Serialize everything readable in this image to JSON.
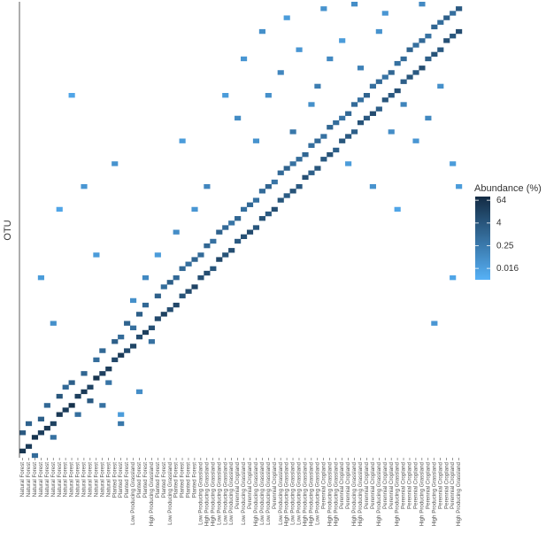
{
  "chart_data": {
    "type": "heatmap",
    "y_label": "OTU",
    "legend_title": "Abundance (%)",
    "log_scale": true,
    "colors": [
      "#56B1F7",
      "#132B43"
    ],
    "color_lim": [
      0.004,
      100
    ],
    "color_ticks": [
      64,
      4,
      0.25,
      0.016
    ],
    "categories": [
      "Natural Forest",
      "Natural Forest",
      "Natural Forest",
      "Natural Forest",
      "Natural Forest",
      "Natural Forest",
      "Natural Forest",
      "Natural Forest",
      "Natural Forest",
      "Natural Forest",
      "Natural Forest",
      "Natural Forest",
      "Natural Forest",
      "Natural Forest",
      "Natural Forest",
      "Planted Forest",
      "Planted Forest",
      "Planted Forest",
      "Low Producing Grassland",
      "Planted Forest",
      "Planted Forest",
      "High Producing Grassland",
      "Planted Forest",
      "Planted Forest",
      "Low Producing Grassland",
      "Planted Forest",
      "Planted Forest",
      "Planted Forest",
      "Planted Forest",
      "Low Producing Grassland",
      "High Producing Grassland",
      "High Producing Grassland",
      "Low Producing Grassland",
      "Low Producing Grassland",
      "Low Producing Grassland",
      "Perennial Cropland",
      "Low Producing Grassland",
      "Perennial Cropland",
      "High Producing Grassland",
      "Low Producing Grassland",
      "Low Producing Grassland",
      "Perennial Cropland",
      "Low Producing Grassland",
      "High Producing Grassland",
      "Low Producing Grassland",
      "Low Producing Grassland",
      "High Producing Grassland",
      "High Producing Grassland",
      "Low Producing Grassland",
      "Perennial Cropland",
      "High Producing Grassland",
      "High Producing Grassland",
      "Perennial Cropland",
      "Perennial Cropland",
      "High Producing Grassland",
      "High Producing Grassland",
      "Perennial Cropland",
      "Perennial Cropland",
      "High Producing Grassland",
      "Perennial Cropland",
      "Perennial Cropland",
      "High Producing Grassland",
      "Perennial Cropland",
      "Perennial Cropland",
      "Perennial Cropland",
      "High Producing Grassland",
      "Perennial Cropland",
      "High Producing Grassland",
      "Perennial Cropland",
      "Perennial Cropland",
      "Perennial Cropland",
      "High Producing Grassland"
    ],
    "cells": [
      [
        0,
        98,
        45
      ],
      [
        1,
        97,
        30
      ],
      [
        2,
        95,
        52
      ],
      [
        3,
        94,
        25
      ],
      [
        4,
        93,
        40
      ],
      [
        5,
        92,
        18
      ],
      [
        6,
        90,
        35
      ],
      [
        7,
        89,
        28
      ],
      [
        8,
        88,
        60
      ],
      [
        9,
        86,
        22
      ],
      [
        10,
        85,
        33
      ],
      [
        11,
        84,
        15
      ],
      [
        12,
        82,
        48
      ],
      [
        13,
        81,
        20
      ],
      [
        14,
        80,
        26
      ],
      [
        15,
        78,
        12
      ],
      [
        16,
        77,
        30
      ],
      [
        17,
        76,
        9
      ],
      [
        18,
        75,
        14
      ],
      [
        19,
        73,
        8
      ],
      [
        20,
        72,
        22
      ],
      [
        21,
        71,
        6
      ],
      [
        22,
        69,
        10
      ],
      [
        23,
        68,
        18
      ],
      [
        24,
        67,
        7
      ],
      [
        25,
        66,
        12
      ],
      [
        26,
        64,
        5
      ],
      [
        27,
        63,
        9
      ],
      [
        28,
        62,
        16
      ],
      [
        29,
        60,
        6
      ],
      [
        30,
        59,
        8
      ],
      [
        31,
        58,
        4
      ],
      [
        32,
        56,
        11
      ],
      [
        33,
        55,
        5
      ],
      [
        34,
        54,
        7
      ],
      [
        35,
        52,
        3
      ],
      [
        36,
        51,
        6
      ],
      [
        37,
        50,
        9
      ],
      [
        38,
        49,
        4
      ],
      [
        39,
        47,
        5
      ],
      [
        40,
        46,
        3
      ],
      [
        41,
        45,
        7
      ],
      [
        42,
        43,
        4
      ],
      [
        43,
        42,
        2.5
      ],
      [
        44,
        41,
        5
      ],
      [
        45,
        40,
        3
      ],
      [
        46,
        38,
        6
      ],
      [
        47,
        37,
        2
      ],
      [
        48,
        36,
        4
      ],
      [
        49,
        34,
        3
      ],
      [
        50,
        33,
        5
      ],
      [
        51,
        32,
        2
      ],
      [
        52,
        30,
        4
      ],
      [
        53,
        29,
        3
      ],
      [
        54,
        28,
        2
      ],
      [
        55,
        26,
        5
      ],
      [
        56,
        25,
        3
      ],
      [
        57,
        24,
        8
      ],
      [
        58,
        23,
        2
      ],
      [
        59,
        21,
        4
      ],
      [
        60,
        20,
        3
      ],
      [
        61,
        19,
        6
      ],
      [
        62,
        17,
        2
      ],
      [
        63,
        16,
        4
      ],
      [
        64,
        15,
        3
      ],
      [
        65,
        14,
        7
      ],
      [
        66,
        12,
        2
      ],
      [
        67,
        11,
        5
      ],
      [
        68,
        10,
        3
      ],
      [
        69,
        8,
        6
      ],
      [
        70,
        7,
        4
      ],
      [
        71,
        6,
        8
      ],
      [
        0,
        94,
        3
      ],
      [
        1,
        92,
        1.5
      ],
      [
        2,
        99,
        0.8
      ],
      [
        3,
        91,
        2
      ],
      [
        4,
        88,
        1
      ],
      [
        5,
        95,
        0.5
      ],
      [
        6,
        86,
        4
      ],
      [
        7,
        84,
        0.9
      ],
      [
        8,
        83,
        2
      ],
      [
        9,
        90,
        0.6
      ],
      [
        10,
        81,
        1.2
      ],
      [
        11,
        87,
        3
      ],
      [
        12,
        78,
        0.7
      ],
      [
        13,
        76,
        1
      ],
      [
        14,
        83,
        0.4
      ],
      [
        15,
        74,
        2
      ],
      [
        16,
        73,
        0.8
      ],
      [
        17,
        70,
        1.5
      ],
      [
        18,
        71,
        0.6
      ],
      [
        19,
        68,
        2
      ],
      [
        20,
        66,
        1
      ],
      [
        21,
        74,
        0.5
      ],
      [
        22,
        64,
        1.8
      ],
      [
        23,
        62,
        0.7
      ],
      [
        24,
        61,
        2.2
      ],
      [
        25,
        60,
        0.9
      ],
      [
        26,
        58,
        1
      ],
      [
        27,
        57,
        0.6
      ],
      [
        28,
        56,
        1.4
      ],
      [
        29,
        55,
        0.8
      ],
      [
        30,
        53,
        1.1
      ],
      [
        31,
        52,
        0.5
      ],
      [
        32,
        50,
        1.6
      ],
      [
        33,
        49,
        0.9
      ],
      [
        34,
        48,
        0.4
      ],
      [
        35,
        47,
        1.2
      ],
      [
        36,
        45,
        0.6
      ],
      [
        37,
        44,
        1
      ],
      [
        38,
        43,
        0.5
      ],
      [
        39,
        41,
        0.8
      ],
      [
        40,
        40,
        1.3
      ],
      [
        41,
        39,
        0.4
      ],
      [
        42,
        37,
        0.9
      ],
      [
        43,
        36,
        1.5
      ],
      [
        44,
        35,
        0.5
      ],
      [
        45,
        34,
        0.7
      ],
      [
        46,
        33,
        1.1
      ],
      [
        47,
        31,
        0.6
      ],
      [
        48,
        30,
        0.9
      ],
      [
        49,
        29,
        0.5
      ],
      [
        50,
        27,
        1.2
      ],
      [
        51,
        26,
        0.7
      ],
      [
        52,
        25,
        0.4
      ],
      [
        53,
        24,
        1
      ],
      [
        54,
        22,
        0.8
      ],
      [
        55,
        21,
        0.5
      ],
      [
        56,
        20,
        1.3
      ],
      [
        57,
        18,
        0.6
      ],
      [
        58,
        17,
        0.9
      ],
      [
        59,
        16,
        0.4
      ],
      [
        60,
        15,
        1.1
      ],
      [
        61,
        13,
        0.5
      ],
      [
        62,
        12,
        0.8
      ],
      [
        63,
        10,
        1.4
      ],
      [
        64,
        9,
        0.6
      ],
      [
        65,
        8,
        0.9
      ],
      [
        66,
        7,
        0.5
      ],
      [
        67,
        5,
        1.2
      ],
      [
        68,
        4,
        0.7
      ],
      [
        69,
        3,
        2
      ],
      [
        70,
        2,
        0.6
      ],
      [
        71,
        1,
        3
      ],
      [
        40,
        20,
        0.05
      ],
      [
        42,
        15,
        0.1
      ],
      [
        45,
        10,
        0.03
      ],
      [
        48,
        18,
        0.2
      ],
      [
        50,
        12,
        0.08
      ],
      [
        52,
        8,
        0.02
      ],
      [
        55,
        14,
        0.15
      ],
      [
        58,
        6,
        0.04
      ],
      [
        60,
        28,
        0.06
      ],
      [
        62,
        22,
        0.12
      ],
      [
        64,
        30,
        0.03
      ],
      [
        66,
        25,
        0.09
      ],
      [
        68,
        18,
        0.05
      ],
      [
        70,
        35,
        0.02
      ],
      [
        35,
        25,
        0.07
      ],
      [
        38,
        30,
        0.04
      ],
      [
        30,
        40,
        0.1
      ],
      [
        28,
        45,
        0.03
      ],
      [
        25,
        50,
        0.06
      ],
      [
        22,
        55,
        0.02
      ],
      [
        20,
        60,
        0.08
      ],
      [
        18,
        65,
        0.05
      ],
      [
        33,
        20,
        0.02
      ],
      [
        44,
        28,
        0.3
      ],
      [
        47,
        22,
        0.05
      ],
      [
        53,
        35,
        0.02
      ],
      [
        57,
        40,
        0.04
      ],
      [
        61,
        45,
        0.01
      ],
      [
        3,
        60,
        0.02
      ],
      [
        5,
        70,
        0.05
      ],
      [
        10,
        40,
        0.03
      ],
      [
        12,
        55,
        0.02
      ],
      [
        8,
        20,
        0.01
      ],
      [
        15,
        35,
        0.04
      ],
      [
        19,
        85,
        0.06
      ],
      [
        16,
        90,
        0.02
      ],
      [
        13,
        88,
        0.5
      ],
      [
        16,
        92,
        0.3
      ],
      [
        26,
        30,
        0.02
      ],
      [
        36,
        12,
        0.03
      ],
      [
        39,
        6,
        0.05
      ],
      [
        43,
        3,
        0.02
      ],
      [
        49,
        1,
        0.04
      ],
      [
        54,
        0,
        0.06
      ],
      [
        59,
        2,
        0.03
      ],
      [
        65,
        0,
        0.08
      ],
      [
        71,
        40,
        0.02
      ],
      [
        70,
        60,
        0.01
      ],
      [
        67,
        70,
        0.03
      ],
      [
        6,
        45,
        0.01
      ]
    ]
  }
}
